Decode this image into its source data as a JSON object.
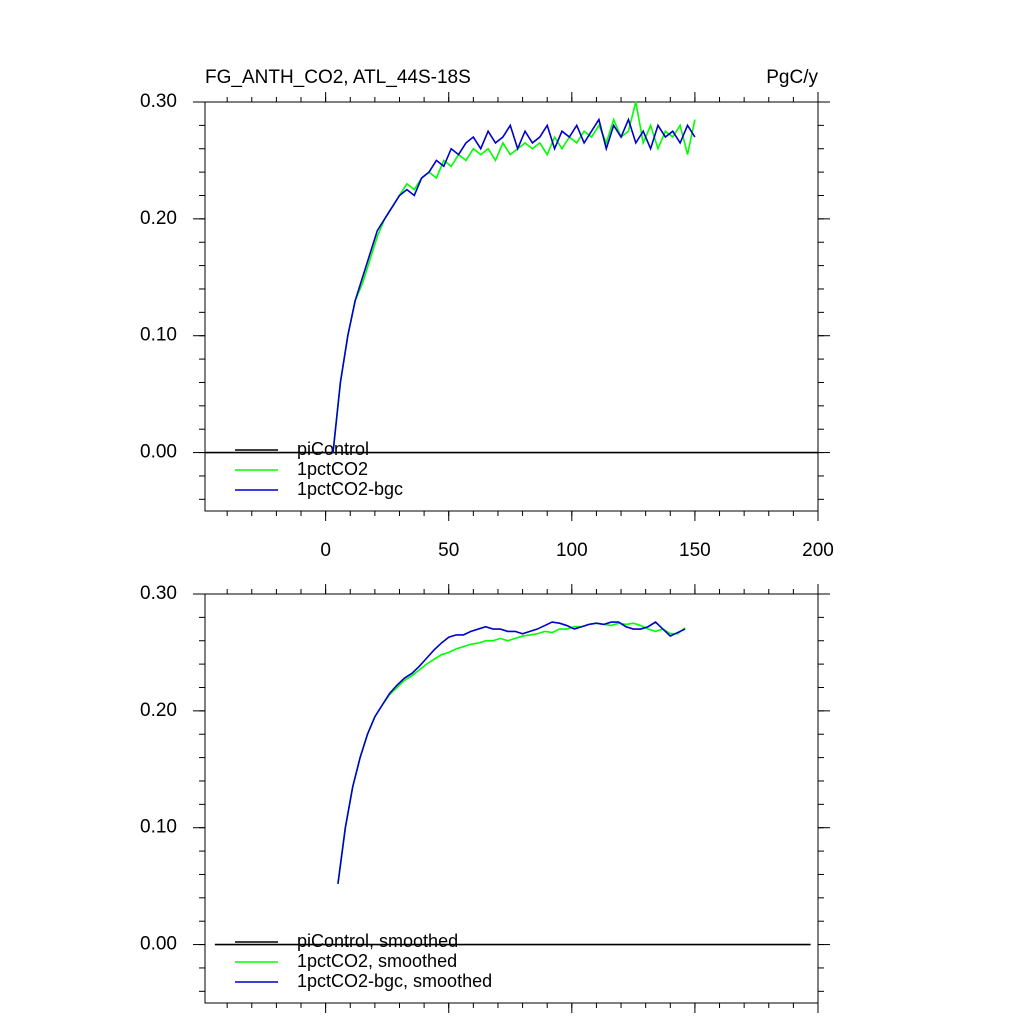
{
  "chart_data": [
    {
      "type": "line",
      "title": "FG_ANTH_CO2, ATL_44S-18S",
      "units": "PgC/y",
      "xlim": [
        -49,
        200
      ],
      "xticks": [
        0,
        50,
        100,
        150,
        200
      ],
      "show_xtick_labels": true,
      "ylim": [
        -0.05,
        0.3
      ],
      "yticks": [
        {
          "value": 0,
          "label": "0.00"
        },
        {
          "value": 0.1,
          "label": "0.10"
        },
        {
          "value": 0.2,
          "label": "0.20"
        },
        {
          "value": 0.3,
          "label": "0.30"
        }
      ],
      "legend": "lower left",
      "x": [
        3,
        6,
        9,
        12,
        15,
        18,
        21,
        24,
        27,
        30,
        33,
        36,
        39,
        42,
        45,
        48,
        51,
        54,
        57,
        60,
        63,
        66,
        69,
        72,
        75,
        78,
        81,
        84,
        87,
        90,
        93,
        96,
        99,
        102,
        105,
        108,
        111,
        114,
        117,
        120,
        123,
        126,
        129,
        132,
        135,
        138,
        141,
        144,
        147,
        150
      ],
      "series": [
        {
          "name": "piControl",
          "color": "#000000",
          "x": [
            -49,
            200
          ],
          "values": [
            0,
            0
          ]
        },
        {
          "name": "1pctCO2",
          "color": "#00ff00",
          "values": [
            0.0,
            0.06,
            0.1,
            0.13,
            0.145,
            0.165,
            0.185,
            0.2,
            0.21,
            0.22,
            0.23,
            0.225,
            0.235,
            0.24,
            0.235,
            0.25,
            0.245,
            0.255,
            0.25,
            0.26,
            0.255,
            0.26,
            0.25,
            0.265,
            0.255,
            0.26,
            0.265,
            0.26,
            0.265,
            0.255,
            0.27,
            0.26,
            0.27,
            0.265,
            0.275,
            0.27,
            0.28,
            0.265,
            0.285,
            0.27,
            0.275,
            0.3,
            0.265,
            0.28,
            0.26,
            0.275,
            0.27,
            0.28,
            0.255,
            0.285
          ]
        },
        {
          "name": "1pctCO2-bgc",
          "color": "#0000cc",
          "values": [
            0.0,
            0.06,
            0.1,
            0.13,
            0.15,
            0.17,
            0.19,
            0.2,
            0.21,
            0.22,
            0.225,
            0.22,
            0.235,
            0.24,
            0.25,
            0.245,
            0.26,
            0.255,
            0.265,
            0.27,
            0.26,
            0.275,
            0.265,
            0.27,
            0.28,
            0.26,
            0.275,
            0.265,
            0.27,
            0.28,
            0.26,
            0.275,
            0.27,
            0.28,
            0.265,
            0.275,
            0.285,
            0.26,
            0.28,
            0.27,
            0.285,
            0.265,
            0.275,
            0.26,
            0.28,
            0.27,
            0.275,
            0.265,
            0.28,
            0.27
          ]
        }
      ]
    },
    {
      "type": "line",
      "xlim": [
        -49,
        200
      ],
      "xticks": [
        0,
        50,
        100,
        150,
        200
      ],
      "show_xtick_labels": false,
      "ylim": [
        -0.05,
        0.3
      ],
      "yticks": [
        {
          "value": 0,
          "label": "0.00"
        },
        {
          "value": 0.1,
          "label": "0.10"
        },
        {
          "value": 0.2,
          "label": "0.20"
        },
        {
          "value": 0.3,
          "label": "0.30"
        }
      ],
      "legend": "lower left",
      "x": [
        5,
        8,
        11,
        14,
        17,
        20,
        23,
        26,
        29,
        32,
        35,
        38,
        41,
        44,
        47,
        50,
        53,
        56,
        59,
        62,
        65,
        68,
        71,
        74,
        77,
        80,
        83,
        86,
        89,
        92,
        95,
        98,
        101,
        104,
        107,
        110,
        113,
        116,
        119,
        122,
        125,
        128,
        131,
        134,
        137,
        140,
        143,
        146
      ],
      "series": [
        {
          "name": "piControl, smoothed",
          "color": "#000000",
          "x": [
            -45,
            197
          ],
          "values": [
            0,
            0
          ]
        },
        {
          "name": "1pctCO2, smoothed",
          "color": "#00ff00",
          "values": [
            0.052,
            0.1,
            0.135,
            0.16,
            0.18,
            0.195,
            0.205,
            0.214,
            0.22,
            0.226,
            0.23,
            0.235,
            0.24,
            0.244,
            0.248,
            0.25,
            0.253,
            0.255,
            0.257,
            0.258,
            0.26,
            0.26,
            0.262,
            0.26,
            0.262,
            0.264,
            0.265,
            0.266,
            0.268,
            0.267,
            0.27,
            0.27,
            0.272,
            0.272,
            0.274,
            0.275,
            0.274,
            0.273,
            0.275,
            0.274,
            0.275,
            0.273,
            0.27,
            0.268,
            0.27,
            0.266,
            0.266,
            0.271
          ]
        },
        {
          "name": "1pctCO2-bgc, smoothed",
          "color": "#0000cc",
          "values": [
            0.052,
            0.1,
            0.135,
            0.16,
            0.18,
            0.195,
            0.205,
            0.215,
            0.222,
            0.228,
            0.232,
            0.238,
            0.245,
            0.252,
            0.258,
            0.263,
            0.265,
            0.265,
            0.268,
            0.27,
            0.272,
            0.27,
            0.27,
            0.268,
            0.268,
            0.266,
            0.268,
            0.27,
            0.273,
            0.276,
            0.275,
            0.273,
            0.27,
            0.272,
            0.274,
            0.275,
            0.274,
            0.276,
            0.276,
            0.272,
            0.27,
            0.27,
            0.272,
            0.276,
            0.27,
            0.264,
            0.267,
            0.27
          ]
        }
      ]
    }
  ]
}
